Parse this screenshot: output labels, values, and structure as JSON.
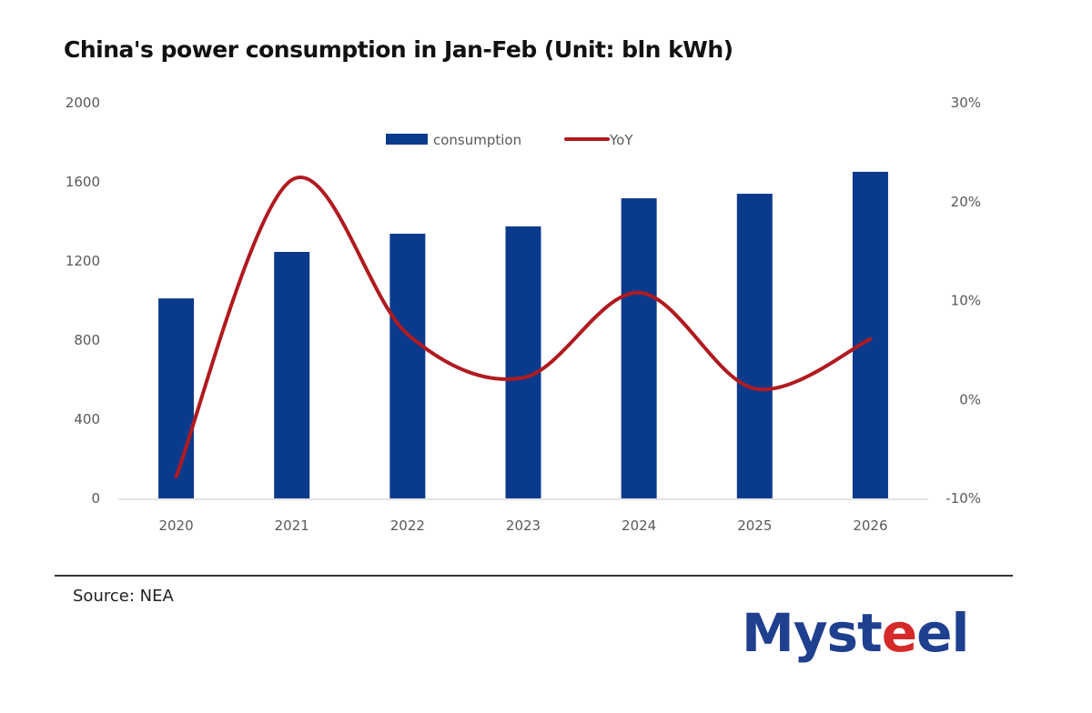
{
  "title": "China's power consumption in Jan-Feb (Unit: bln kWh)",
  "source": "Source: NEA",
  "logo": {
    "before": "Myst",
    "accent": "e",
    "after": "el",
    "accent_color": "#d42a2a",
    "color": "#1f3f8f"
  },
  "chart_data": {
    "type": "bar+line",
    "title": "China's power consumption in Jan-Feb (Unit: bln kWh)",
    "categories": [
      "2020",
      "2021",
      "2022",
      "2023",
      "2024",
      "2025",
      "2026"
    ],
    "series": [
      {
        "name": "consumption",
        "type": "bar",
        "axis": "left",
        "color": "#0a3a8c",
        "values": [
          1011,
          1246,
          1338,
          1375,
          1517,
          1540,
          1651
        ]
      },
      {
        "name": "YoY",
        "type": "line",
        "axis": "right",
        "color": "#b01a1f",
        "smooth": true,
        "values": [
          -7.8,
          22.2,
          6.6,
          2.2,
          10.8,
          1.1,
          6.1
        ]
      }
    ],
    "y_left": {
      "min": 0,
      "max": 2000,
      "ticks": [
        0,
        400,
        800,
        1200,
        1600,
        2000
      ],
      "tick_labels": [
        "0",
        "400",
        "800",
        "1200",
        "1600",
        "2000"
      ]
    },
    "y_right": {
      "min": -10,
      "max": 30,
      "ticks": [
        -10,
        0,
        10,
        20,
        30
      ],
      "tick_labels": [
        "-10%",
        "0%",
        "10%",
        "20%",
        "30%"
      ],
      "unit": "%"
    },
    "xlabel": "",
    "ylabel": "",
    "grid": false,
    "legend": {
      "position": "top-center",
      "entries": [
        "consumption",
        "YoY"
      ]
    }
  }
}
